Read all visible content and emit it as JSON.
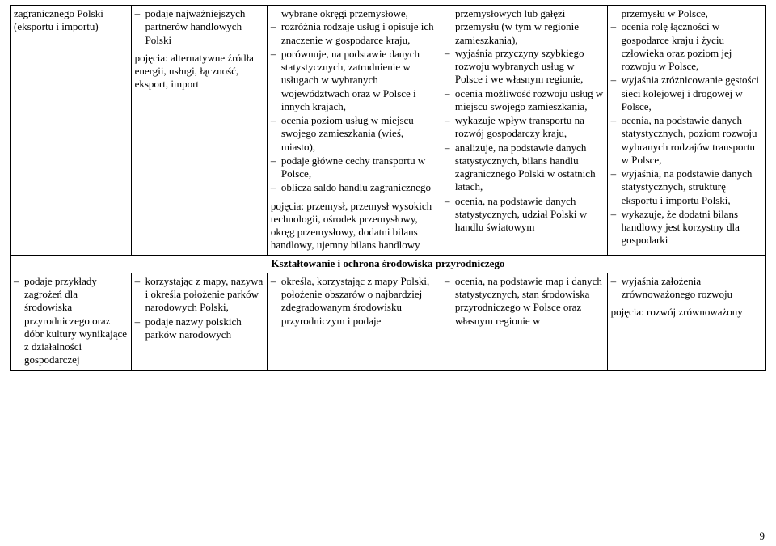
{
  "row1": {
    "c1_p1": "zagranicznego Polski (eksportu i importu)",
    "c2_li1": "podaje najważniejszych partnerów handlowych Polski",
    "c2_poj": "pojęcia: alternatywne źródła energii, usługi, łączność, eksport, import",
    "c3_intro": "wybrane okręgi przemysłowe,",
    "c3_li1": "rozróżnia rodzaje usług i opisuje ich znaczenie w gospodarce kraju,",
    "c3_li2": "porównuje, na podstawie danych statystycznych, zatrudnienie w usługach w wybranych województwach oraz w Polsce i innych krajach,",
    "c3_li3": "ocenia poziom usług w miejscu swojego zamieszkania (wieś, miasto),",
    "c3_li4": "podaje główne cechy transportu w Polsce,",
    "c3_li5": "oblicza saldo handlu zagranicznego",
    "c3_poj": "pojęcia: przemysł, przemysł wysokich technologii, ośrodek przemysłowy, okręg przemysłowy, dodatni bilans handlowy, ujemny bilans handlowy",
    "c4_intro": "przemysłowych lub gałęzi przemysłu (w tym w regionie zamieszkania),",
    "c4_li1": "wyjaśnia przyczyny szybkiego rozwoju wybranych usług w Polsce i we własnym regionie,",
    "c4_li2": "ocenia możliwość rozwoju usług w miejscu swojego zamieszkania,",
    "c4_li3": "wykazuje wpływ transportu na rozwój gospodarczy kraju,",
    "c4_li4": "analizuje, na podstawie danych statystycznych, bilans handlu zagranicznego Polski w ostatnich latach,",
    "c4_li5": "ocenia, na podstawie danych statystycznych, udział Polski w handlu światowym",
    "c5_intro": "przemysłu w Polsce,",
    "c5_li1": "ocenia rolę łączności w gospodarce kraju i życiu człowieka oraz poziom jej rozwoju w Polsce,",
    "c5_li2": "wyjaśnia zróżnicowanie gęstości sieci kolejowej i drogowej w Polsce,",
    "c5_li3": "ocenia, na podstawie danych statystycznych, poziom rozwoju wybranych rodzajów transportu w Polsce,",
    "c5_li4": "wyjaśnia, na podstawie danych statystycznych, strukturę eksportu i importu Polski,",
    "c5_li5": "wykazuje, że dodatni bilans handlowy jest korzystny dla gospodarki"
  },
  "section_title": "Kształtowanie i ochrona środowiska przyrodniczego",
  "row2": {
    "c1_li1": "podaje przykłady zagrożeń dla środowiska przyrodniczego oraz dóbr kultury wynikające z działalności gospodarczej",
    "c2_li1": "korzystając z mapy, nazywa i określa położenie parków narodowych Polski,",
    "c2_li2": "podaje nazwy polskich parków narodowych",
    "c3_li1": "określa, korzystając z mapy Polski, położenie obszarów o najbardziej zdegradowanym środowisku przyrodniczym i podaje",
    "c4_li1": "ocenia, na podstawie map i danych statystycznych, stan środowiska przyrodniczego w Polsce oraz własnym regionie w",
    "c5_li1": "wyjaśnia założenia zrównoważonego rozwoju",
    "c5_poj": "pojęcia: rozwój zrównoważony"
  },
  "page_number": "9"
}
